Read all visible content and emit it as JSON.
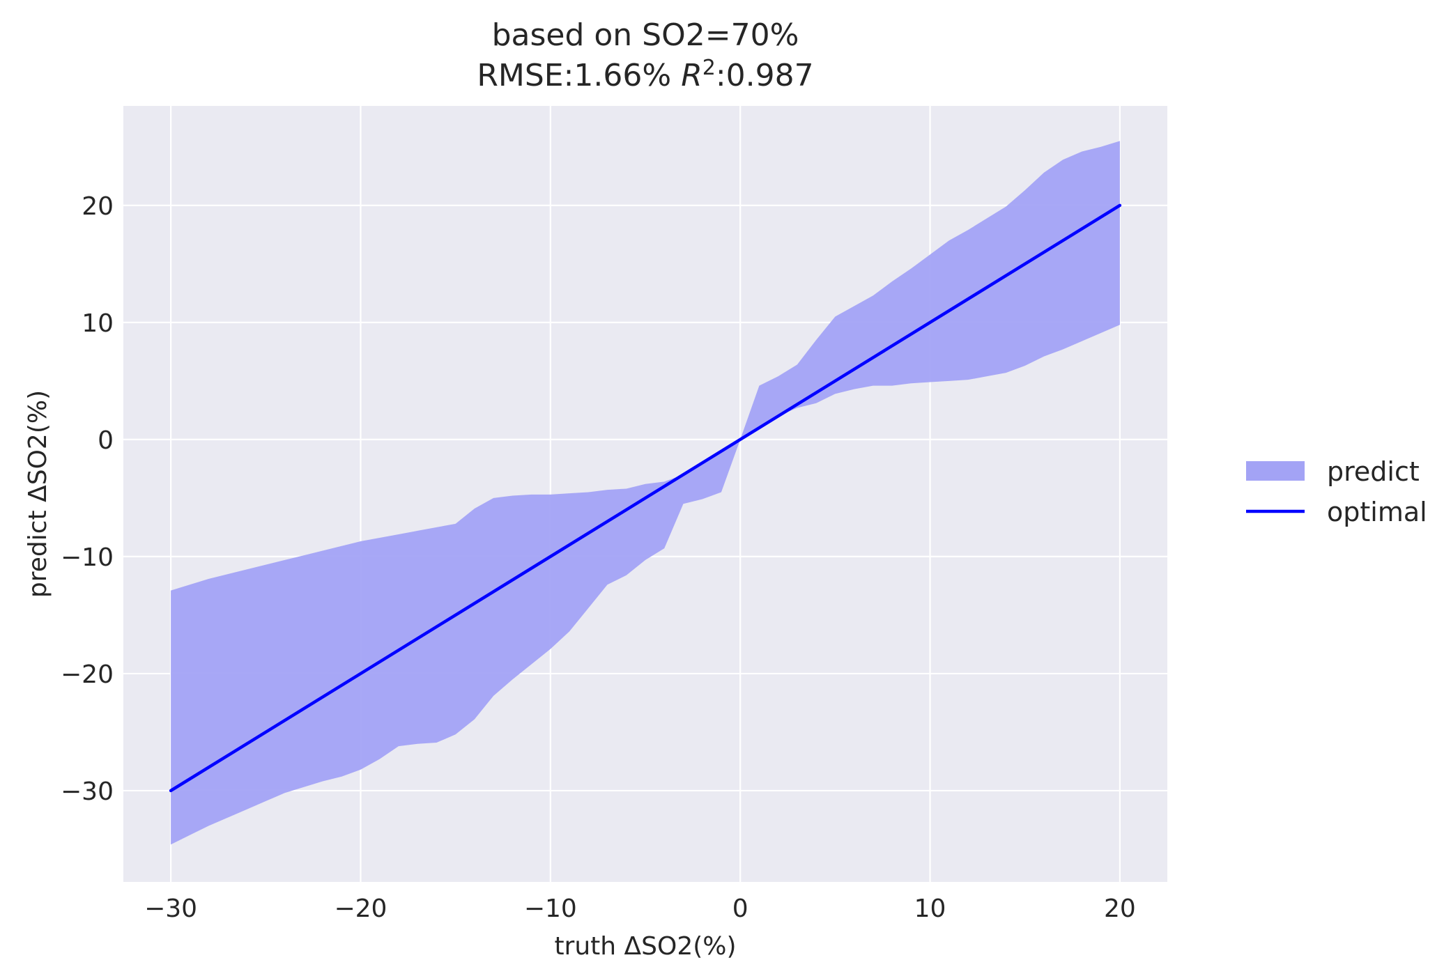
{
  "chart_data": {
    "type": "area",
    "title_line1": "based on SO2=70%",
    "title_line2_prefix": "RMSE:1.66% ",
    "title_line2_r": "R",
    "title_line2_sup": "2",
    "title_line2_suffix": ":0.987",
    "xlabel": "truth ΔSO2(%)",
    "ylabel": "predict ΔSO2(%)",
    "xlim": [
      -32.5,
      22.5
    ],
    "ylim": [
      -37.8,
      28.5
    ],
    "xticks": [
      -30,
      -20,
      -10,
      0,
      10,
      20
    ],
    "xtick_labels": [
      "−30",
      "−20",
      "−10",
      "0",
      "10",
      "20"
    ],
    "yticks": [
      -30,
      -20,
      -10,
      0,
      10,
      20
    ],
    "ytick_labels": [
      "−30",
      "−20",
      "−10",
      "0",
      "10",
      "20"
    ],
    "grid": true,
    "background": "#eaeaf2",
    "legend_position": "right",
    "series": [
      {
        "name": "predict",
        "kind": "band",
        "color": "#a3a3f5",
        "x": [
          -30,
          -29,
          -28,
          -27,
          -26,
          -25,
          -24,
          -23,
          -22,
          -21,
          -20,
          -19,
          -18,
          -17,
          -16,
          -15,
          -14,
          -13,
          -12,
          -11,
          -10,
          -9,
          -8,
          -7,
          -6,
          -5,
          -4,
          -3,
          -2,
          -1,
          0,
          1,
          2,
          3,
          4,
          5,
          6,
          7,
          8,
          9,
          10,
          11,
          12,
          13,
          14,
          15,
          16,
          17,
          18,
          19,
          20
        ],
        "upper": [
          -12.9,
          -12.4,
          -11.9,
          -11.5,
          -11.1,
          -10.7,
          -10.3,
          -9.9,
          -9.5,
          -9.1,
          -8.7,
          -8.4,
          -8.1,
          -7.8,
          -7.5,
          -7.2,
          -5.9,
          -5.0,
          -4.8,
          -4.7,
          -4.7,
          -4.6,
          -4.5,
          -4.3,
          -4.2,
          -3.8,
          -3.6,
          -3.0,
          -2.0,
          -1.0,
          0.0,
          4.6,
          5.4,
          6.4,
          8.5,
          10.5,
          11.4,
          12.3,
          13.5,
          14.6,
          15.8,
          17.0,
          17.9,
          18.9,
          19.9,
          21.3,
          22.8,
          23.9,
          24.6,
          25.0,
          25.5
        ],
        "lower": [
          -34.6,
          -33.8,
          -33.0,
          -32.3,
          -31.6,
          -30.9,
          -30.2,
          -29.7,
          -29.2,
          -28.8,
          -28.2,
          -27.3,
          -26.2,
          -26.0,
          -25.9,
          -25.2,
          -23.9,
          -21.9,
          -20.5,
          -19.2,
          -17.9,
          -16.4,
          -14.4,
          -12.4,
          -11.6,
          -10.3,
          -9.3,
          -5.5,
          -5.1,
          -4.5,
          0.0,
          1.1,
          2.0,
          2.7,
          3.1,
          3.9,
          4.3,
          4.6,
          4.6,
          4.8,
          4.9,
          5.0,
          5.1,
          5.4,
          5.7,
          6.3,
          7.1,
          7.7,
          8.4,
          9.1,
          9.8
        ]
      },
      {
        "name": "optimal",
        "kind": "line",
        "color": "#0000ff",
        "x": [
          -30,
          20
        ],
        "y": [
          -30,
          20
        ]
      }
    ]
  }
}
